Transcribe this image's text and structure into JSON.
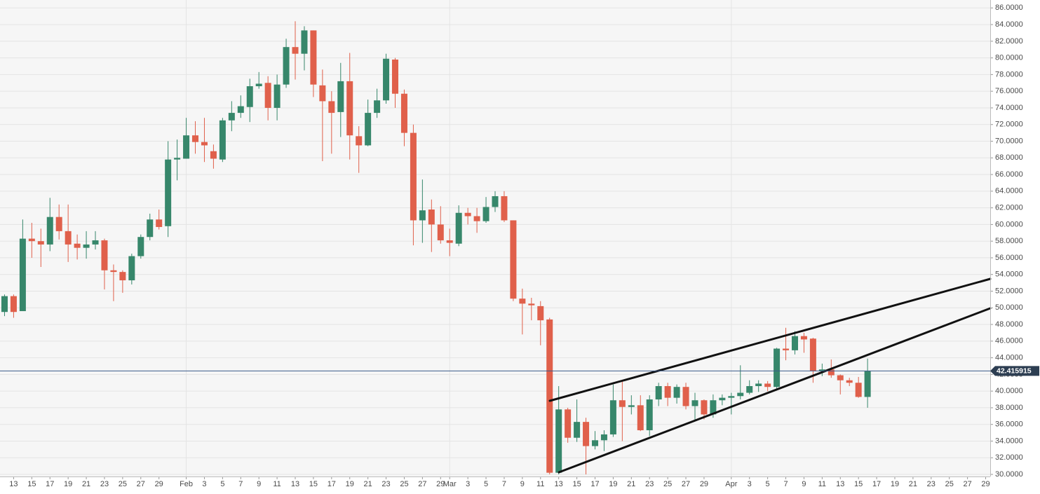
{
  "chart_data": {
    "type": "candlestick",
    "up_color": "#37876b",
    "down_color": "#e0604b",
    "grid": true,
    "x": [
      "01-12",
      "01-13",
      "01-14",
      "01-15",
      "01-16",
      "01-17",
      "01-18",
      "01-19",
      "01-20",
      "01-21",
      "01-22",
      "01-23",
      "01-24",
      "01-25",
      "01-26",
      "01-27",
      "01-28",
      "01-29",
      "01-30",
      "01-31",
      "02-01",
      "02-02",
      "02-03",
      "02-04",
      "02-05",
      "02-06",
      "02-07",
      "02-08",
      "02-09",
      "02-10",
      "02-11",
      "02-12",
      "02-13",
      "02-14",
      "02-15",
      "02-16",
      "02-17",
      "02-18",
      "02-19",
      "02-20",
      "02-21",
      "02-22",
      "02-23",
      "02-24",
      "02-25",
      "02-26",
      "02-27",
      "02-28",
      "02-29",
      "03-01",
      "03-02",
      "03-03",
      "03-04",
      "03-05",
      "03-06",
      "03-07",
      "03-08",
      "03-09",
      "03-10",
      "03-11",
      "03-12",
      "03-13",
      "03-14",
      "03-15",
      "03-16",
      "03-17",
      "03-18",
      "03-19",
      "03-20",
      "03-21",
      "03-22",
      "03-23",
      "03-24",
      "03-25",
      "03-26",
      "03-27",
      "03-28",
      "03-29",
      "03-30",
      "03-31",
      "04-01",
      "04-02",
      "04-03",
      "04-04",
      "04-05",
      "04-06",
      "04-07",
      "04-08",
      "04-09",
      "04-10",
      "04-11",
      "04-12",
      "04-13",
      "04-14",
      "04-15",
      "04-16"
    ],
    "open": [
      49.5,
      51.4,
      49.6,
      58.3,
      58.0,
      57.6,
      60.9,
      59.2,
      57.7,
      57.2,
      57.6,
      58.1,
      54.5,
      54.3,
      53.3,
      56.2,
      58.5,
      60.6,
      59.8,
      67.8,
      67.9,
      70.7,
      69.9,
      68.8,
      67.8,
      72.5,
      73.4,
      74.1,
      76.6,
      77.0,
      74.0,
      76.8,
      81.3,
      80.5,
      83.3,
      76.7,
      74.8,
      73.5,
      77.2,
      70.6,
      69.5,
      73.4,
      74.9,
      79.8,
      75.7,
      71.0,
      60.5,
      61.8,
      60.0,
      58.1,
      57.7,
      61.4,
      61.0,
      60.4,
      62.1,
      63.4,
      60.5,
      51.1,
      50.5,
      50.2,
      48.6,
      30.2,
      37.8,
      34.4,
      36.3,
      33.4,
      34.1,
      34.8,
      38.9,
      38.1,
      38.3,
      35.3,
      39.0,
      40.6,
      39.2,
      40.5,
      38.2,
      38.9,
      37.2,
      38.9,
      39.2,
      39.4,
      39.8,
      40.6,
      40.9,
      40.5,
      45.1,
      44.9,
      46.6,
      46.3,
      42.4,
      42.6,
      41.9,
      41.3,
      41.0,
      39.3
    ],
    "high": [
      51.6,
      51.6,
      60.6,
      60.2,
      59.5,
      63.2,
      62.4,
      62.4,
      58.8,
      59.2,
      59.2,
      58.3,
      55.2,
      54.5,
      56.5,
      58.8,
      61.3,
      61.8,
      70.0,
      70.2,
      72.8,
      72.4,
      72.8,
      69.6,
      72.8,
      74.8,
      75.5,
      77.5,
      78.3,
      77.8,
      78.0,
      82.3,
      84.4,
      83.8,
      83.3,
      78.6,
      76.0,
      79.4,
      80.6,
      71.8,
      75.0,
      76.3,
      80.5,
      80.0,
      76.2,
      72.0,
      65.4,
      63.0,
      62.2,
      59.5,
      62.3,
      62.0,
      62.0,
      63.3,
      64.0,
      64.0,
      60.5,
      52.3,
      51.2,
      50.8,
      48.8,
      40.6,
      38.0,
      39.0,
      36.8,
      35.2,
      35.3,
      40.8,
      41.2,
      39.5,
      39.5,
      39.5,
      41.0,
      41.0,
      40.8,
      41.0,
      39.8,
      39.0,
      39.6,
      39.6,
      39.8,
      43.1,
      41.3,
      41.3,
      41.2,
      45.2,
      47.6,
      47.2,
      47.0,
      46.4,
      43.3,
      43.8,
      42.0,
      41.6,
      41.7,
      43.9
    ],
    "low": [
      49.0,
      48.8,
      49.6,
      56.0,
      54.9,
      56.8,
      58.2,
      55.5,
      55.8,
      55.9,
      57.0,
      52.2,
      50.8,
      51.8,
      52.8,
      55.9,
      58.1,
      59.4,
      58.5,
      65.3,
      67.9,
      68.5,
      67.5,
      66.7,
      67.5,
      71.2,
      72.8,
      72.3,
      76.3,
      72.5,
      72.5,
      76.4,
      77.4,
      78.5,
      75.3,
      67.6,
      68.5,
      70.5,
      67.8,
      66.2,
      69.4,
      72.8,
      74.5,
      74.0,
      69.4,
      57.5,
      57.8,
      56.7,
      57.7,
      56.2,
      57.4,
      60.0,
      59.0,
      60.2,
      61.5,
      60.3,
      50.8,
      46.8,
      48.5,
      45.5,
      30.0,
      30.0,
      33.8,
      33.9,
      30.0,
      33.0,
      32.8,
      34.5,
      34.0,
      37.2,
      35.2,
      34.6,
      38.2,
      38.2,
      38.5,
      37.8,
      36.4,
      36.6,
      36.8,
      38.3,
      37.2,
      39.0,
      39.6,
      39.9,
      40.0,
      40.2,
      43.7,
      44.4,
      44.6,
      41.0,
      41.8,
      41.6,
      39.6,
      40.6,
      39.2,
      38.0
    ],
    "close": [
      51.4,
      49.5,
      58.3,
      58.0,
      57.6,
      60.9,
      59.2,
      57.6,
      57.2,
      57.6,
      58.1,
      54.5,
      54.3,
      53.3,
      56.2,
      58.5,
      60.6,
      59.7,
      67.8,
      68.0,
      70.7,
      69.9,
      69.5,
      67.9,
      72.5,
      73.4,
      74.2,
      76.6,
      76.9,
      74.0,
      76.8,
      81.3,
      80.5,
      83.3,
      76.8,
      74.8,
      73.4,
      77.2,
      70.7,
      69.5,
      73.4,
      74.9,
      79.9,
      75.7,
      71.0,
      60.5,
      61.7,
      60.0,
      58.1,
      57.8,
      61.4,
      61.0,
      60.4,
      62.1,
      63.4,
      60.5,
      51.1,
      50.5,
      50.3,
      48.5,
      30.2,
      37.8,
      34.4,
      36.3,
      33.4,
      34.1,
      34.8,
      38.9,
      38.1,
      38.3,
      35.3,
      39.0,
      40.6,
      39.2,
      40.5,
      38.2,
      38.9,
      37.2,
      38.9,
      39.2,
      39.4,
      39.8,
      40.6,
      40.9,
      40.5,
      45.1,
      44.9,
      46.6,
      46.2,
      42.4,
      42.6,
      41.9,
      41.3,
      41.0,
      39.3,
      42.4
    ],
    "last_price": 42.415915,
    "xlim": [
      "01-12",
      "04-29"
    ],
    "xticks": [
      {
        "value": "01-13",
        "label": "13"
      },
      {
        "value": "01-15",
        "label": "15"
      },
      {
        "value": "01-17",
        "label": "17"
      },
      {
        "value": "01-19",
        "label": "19"
      },
      {
        "value": "01-21",
        "label": "21"
      },
      {
        "value": "01-23",
        "label": "23"
      },
      {
        "value": "01-25",
        "label": "25"
      },
      {
        "value": "01-27",
        "label": "27"
      },
      {
        "value": "01-29",
        "label": "29"
      },
      {
        "value": "02-01",
        "label": "Feb"
      },
      {
        "value": "02-03",
        "label": "3"
      },
      {
        "value": "02-05",
        "label": "5"
      },
      {
        "value": "02-07",
        "label": "7"
      },
      {
        "value": "02-09",
        "label": "9"
      },
      {
        "value": "02-11",
        "label": "11"
      },
      {
        "value": "02-13",
        "label": "13"
      },
      {
        "value": "02-15",
        "label": "15"
      },
      {
        "value": "02-17",
        "label": "17"
      },
      {
        "value": "02-19",
        "label": "19"
      },
      {
        "value": "02-21",
        "label": "21"
      },
      {
        "value": "02-23",
        "label": "23"
      },
      {
        "value": "02-25",
        "label": "25"
      },
      {
        "value": "02-27",
        "label": "27"
      },
      {
        "value": "02-29",
        "label": "29"
      },
      {
        "value": "03-01",
        "label": "Mar"
      },
      {
        "value": "03-03",
        "label": "3"
      },
      {
        "value": "03-05",
        "label": "5"
      },
      {
        "value": "03-07",
        "label": "7"
      },
      {
        "value": "03-09",
        "label": "9"
      },
      {
        "value": "03-11",
        "label": "11"
      },
      {
        "value": "03-13",
        "label": "13"
      },
      {
        "value": "03-15",
        "label": "15"
      },
      {
        "value": "03-17",
        "label": "17"
      },
      {
        "value": "03-19",
        "label": "19"
      },
      {
        "value": "03-21",
        "label": "21"
      },
      {
        "value": "03-23",
        "label": "23"
      },
      {
        "value": "03-25",
        "label": "25"
      },
      {
        "value": "03-27",
        "label": "27"
      },
      {
        "value": "03-29",
        "label": "29"
      },
      {
        "value": "04-01",
        "label": "Apr"
      },
      {
        "value": "04-03",
        "label": "3"
      },
      {
        "value": "04-05",
        "label": "5"
      },
      {
        "value": "04-07",
        "label": "7"
      },
      {
        "value": "04-09",
        "label": "9"
      },
      {
        "value": "04-11",
        "label": "11"
      },
      {
        "value": "04-13",
        "label": "13"
      },
      {
        "value": "04-15",
        "label": "15"
      },
      {
        "value": "04-17",
        "label": "17"
      },
      {
        "value": "04-19",
        "label": "19"
      },
      {
        "value": "04-21",
        "label": "21"
      },
      {
        "value": "04-23",
        "label": "23"
      },
      {
        "value": "04-25",
        "label": "25"
      },
      {
        "value": "04-27",
        "label": "27"
      },
      {
        "value": "04-29",
        "label": "29"
      }
    ],
    "ylim": [
      29.75,
      86.95
    ],
    "yticks": [
      {
        "value": 30,
        "label": "30.0000"
      },
      {
        "value": 32,
        "label": "32.0000"
      },
      {
        "value": 34,
        "label": "34.0000"
      },
      {
        "value": 36,
        "label": "36.0000"
      },
      {
        "value": 38,
        "label": "38.0000"
      },
      {
        "value": 40,
        "label": "40.0000"
      },
      {
        "value": 42,
        "label": "42.0000"
      },
      {
        "value": 44,
        "label": "44.0000"
      },
      {
        "value": 46,
        "label": "46.0000"
      },
      {
        "value": 48,
        "label": "48.0000"
      },
      {
        "value": 50,
        "label": "50.0000"
      },
      {
        "value": 52,
        "label": "52.0000"
      },
      {
        "value": 54,
        "label": "54.0000"
      },
      {
        "value": 56,
        "label": "56.0000"
      },
      {
        "value": 58,
        "label": "58.0000"
      },
      {
        "value": 60,
        "label": "60.0000"
      },
      {
        "value": 62,
        "label": "62.0000"
      },
      {
        "value": 64,
        "label": "64.0000"
      },
      {
        "value": 66,
        "label": "66.0000"
      },
      {
        "value": 68,
        "label": "68.0000"
      },
      {
        "value": 70,
        "label": "70.0000"
      },
      {
        "value": 72,
        "label": "72.0000"
      },
      {
        "value": 74,
        "label": "74.0000"
      },
      {
        "value": 76,
        "label": "76.0000"
      },
      {
        "value": 78,
        "label": "78.0000"
      },
      {
        "value": 80,
        "label": "80.0000"
      },
      {
        "value": 82,
        "label": "82.0000"
      },
      {
        "value": 84,
        "label": "84.0000"
      },
      {
        "value": 86,
        "label": "86.0000"
      }
    ]
  }
}
